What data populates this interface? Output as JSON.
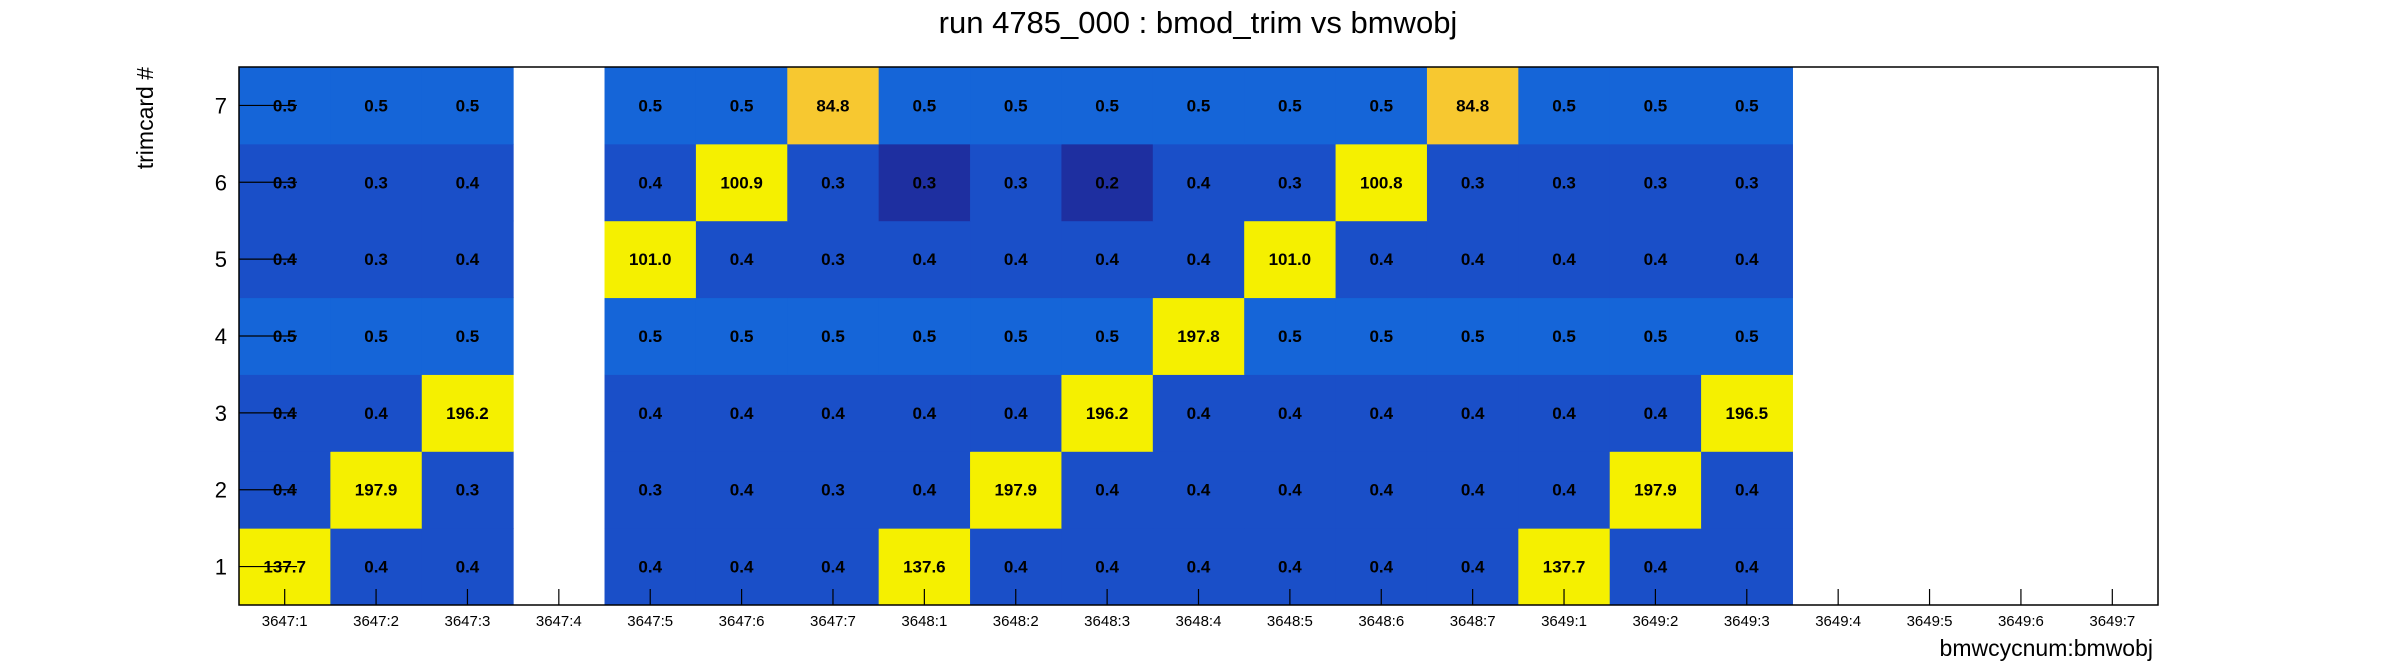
{
  "chart_data": {
    "type": "heatmap",
    "title": "run 4785_000 : bmod_trim vs bmwobj",
    "xlabel": "bmwcycnum:bmwobj",
    "ylabel": "trimcard #",
    "x_categories": [
      "3647:1",
      "3647:2",
      "3647:3",
      "3647:4",
      "3647:5",
      "3647:6",
      "3647:7",
      "3648:1",
      "3648:2",
      "3648:3",
      "3648:4",
      "3648:5",
      "3648:6",
      "3648:7",
      "3649:1",
      "3649:2",
      "3649:3",
      "3649:4",
      "3649:5",
      "3649:6",
      "3649:7"
    ],
    "y_categories": [
      "1",
      "2",
      "3",
      "4",
      "5",
      "6",
      "7"
    ],
    "values": {
      "7": [
        "0.5",
        "0.5",
        "0.5",
        null,
        "0.5",
        "0.5",
        "84.8",
        "0.5",
        "0.5",
        "0.5",
        "0.5",
        "0.5",
        "0.5",
        "84.8",
        "0.5",
        "0.5",
        "0.5",
        null,
        null,
        null,
        null
      ],
      "6": [
        "0.3",
        "0.3",
        "0.4",
        null,
        "0.4",
        "100.9",
        "0.3",
        "0.3",
        "0.3",
        "0.2",
        "0.4",
        "0.3",
        "100.8",
        "0.3",
        "0.3",
        "0.3",
        "0.3",
        null,
        null,
        null,
        null
      ],
      "5": [
        "0.4",
        "0.3",
        "0.4",
        null,
        "101.0",
        "0.4",
        "0.3",
        "0.4",
        "0.4",
        "0.4",
        "0.4",
        "101.0",
        "0.4",
        "0.4",
        "0.4",
        "0.4",
        "0.4",
        null,
        null,
        null,
        null
      ],
      "4": [
        "0.5",
        "0.5",
        "0.5",
        null,
        "0.5",
        "0.5",
        "0.5",
        "0.5",
        "0.5",
        "0.5",
        "197.8",
        "0.5",
        "0.5",
        "0.5",
        "0.5",
        "0.5",
        "0.5",
        null,
        null,
        null,
        null
      ],
      "3": [
        "0.4",
        "0.4",
        "196.2",
        null,
        "0.4",
        "0.4",
        "0.4",
        "0.4",
        "0.4",
        "196.2",
        "0.4",
        "0.4",
        "0.4",
        "0.4",
        "0.4",
        "0.4",
        "196.5",
        null,
        null,
        null,
        null
      ],
      "2": [
        "0.4",
        "197.9",
        "0.3",
        null,
        "0.3",
        "0.4",
        "0.3",
        "0.4",
        "197.9",
        "0.4",
        "0.4",
        "0.4",
        "0.4",
        "0.4",
        "0.4",
        "197.9",
        "0.4",
        null,
        null,
        null,
        null
      ],
      "1": [
        "137.7",
        "0.4",
        "0.4",
        null,
        "0.4",
        "0.4",
        "0.4",
        "137.6",
        "0.4",
        "0.4",
        "0.4",
        "0.4",
        "0.4",
        "0.4",
        "137.7",
        "0.4",
        "0.4",
        null,
        null,
        null,
        null
      ]
    },
    "grid": false,
    "legend": "none",
    "colors": {
      "low": "#1e2fa0",
      "mid_low": "#1a4fc8",
      "mid": "#1565d8",
      "high": "#f5f000",
      "orange": "#f7c830"
    }
  }
}
